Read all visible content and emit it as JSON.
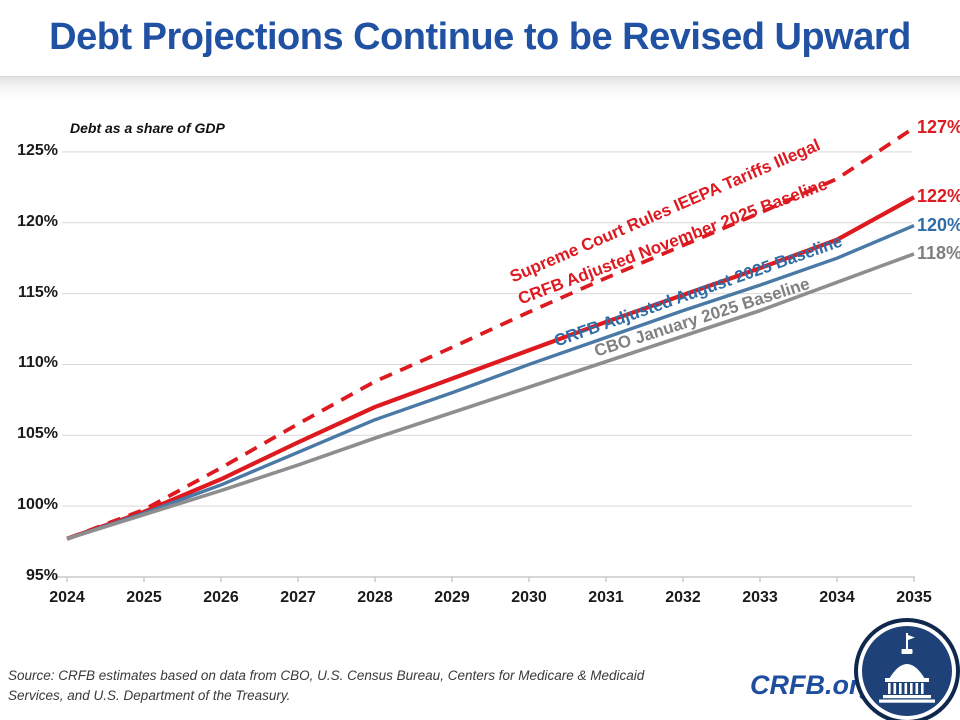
{
  "header": {
    "title": "Debt Projections Continue to be Revised Upward"
  },
  "chart": {
    "axis_note": "Debt as a share of GDP",
    "accent_colors": {
      "red": "#DE1A21",
      "steel_blue_line": "#4A79A6",
      "steel_blue_label": "#2E6DA6",
      "gray_line": "#8E8E8E",
      "gray_label": "#7F7F7F",
      "gridline": "#D9D9D9",
      "axis": "#BFBFBF",
      "title_blue": "#2151A3"
    }
  },
  "chart_data": {
    "type": "line",
    "title": "Debt Projections Continue to be Revised Upward",
    "ylabel": "Debt as a share of GDP",
    "ylim": [
      95,
      127.5
    ],
    "grid": true,
    "legend_position": "inline-rotated-labels",
    "x": [
      2024,
      2025,
      2026,
      2027,
      2028,
      2029,
      2030,
      2031,
      2032,
      2033,
      2034,
      2035
    ],
    "x_labels": [
      "2024",
      "2025",
      "2026",
      "2027",
      "2028",
      "2029",
      "2030",
      "2031",
      "2032",
      "2033",
      "2034",
      "2035"
    ],
    "y_ticks": [
      "95%",
      "100%",
      "105%",
      "110%",
      "115%",
      "120%",
      "125%"
    ],
    "y_tick_values": [
      95,
      100,
      105,
      110,
      115,
      120,
      125
    ],
    "series": [
      {
        "name": "Supreme Court Rules IEEPA Tariffs Illegal",
        "style": "dashed",
        "color": "#DE1A21",
        "label_color": "#DE1A21",
        "end_label": "127%",
        "values": [
          97.7,
          99.75,
          102.7,
          105.8,
          108.8,
          111.2,
          113.7,
          116.1,
          118.4,
          120.7,
          123.1,
          126.7
        ]
      },
      {
        "name": "CRFB Adjusted November 2025 Baseline",
        "style": "solid",
        "color": "#DE1A21",
        "label_color": "#DE1A21",
        "end_label": "122%",
        "values": [
          97.7,
          99.6,
          101.9,
          104.5,
          107.0,
          109.0,
          111.0,
          113.0,
          114.9,
          116.8,
          118.8,
          121.8
        ]
      },
      {
        "name": "CRFB Adjusted August 2025 Baseline",
        "style": "solid",
        "color": "#4A79A6",
        "label_color": "#2E6DA6",
        "end_label": "120%",
        "values": [
          97.7,
          99.5,
          101.5,
          103.8,
          106.1,
          108.0,
          110.0,
          111.9,
          113.8,
          115.6,
          117.5,
          119.8
        ]
      },
      {
        "name": "CBO January 2025 Baseline",
        "style": "solid",
        "color": "#8E8E8E",
        "label_color": "#7F7F7F",
        "end_label": "118%",
        "values": [
          97.7,
          99.4,
          101.1,
          102.9,
          104.8,
          106.6,
          108.4,
          110.2,
          112.0,
          113.8,
          115.8,
          117.8
        ]
      }
    ]
  },
  "footer": {
    "source": "Source: CRFB estimates based on data from CBO, U.S. Census Bureau, Centers for Medicare & Medicaid Services, and U.S. Department of the Treasury.",
    "brand": "CRFB.org",
    "logo": "capitol-dome-icon"
  }
}
